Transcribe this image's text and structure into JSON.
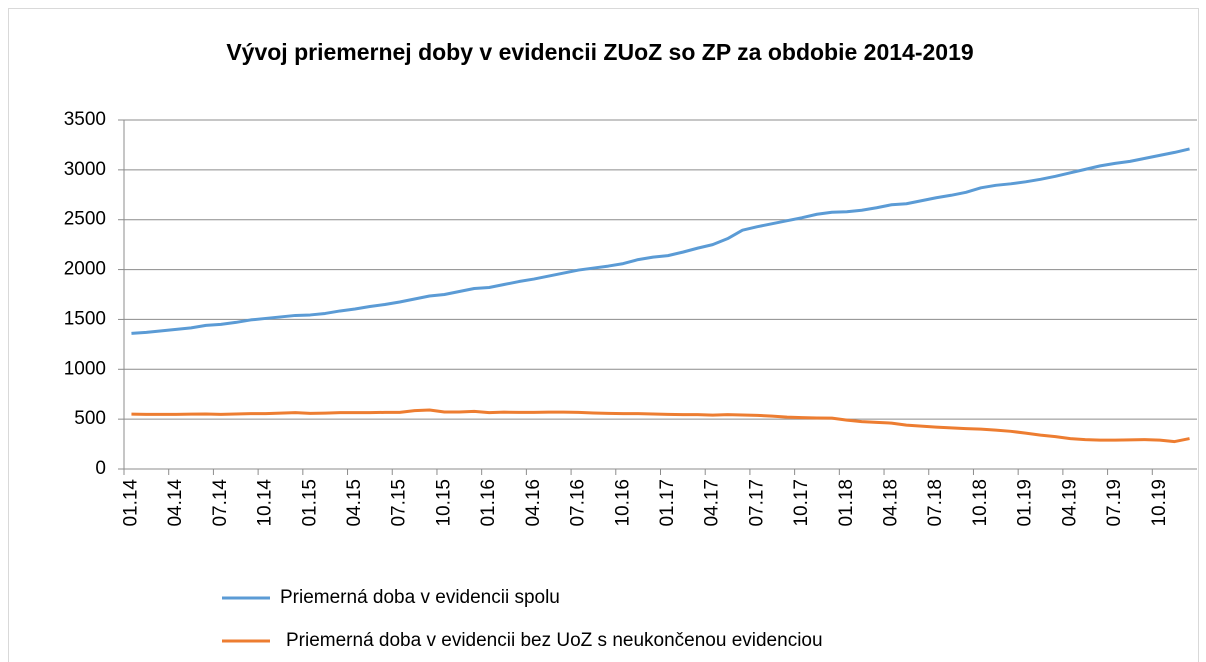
{
  "chart_data": {
    "type": "line",
    "title": "Vývoj priemernej doby v evidencii ZUoZ so ZP za obdobie 2014-2019",
    "categories": [
      "01.14",
      null,
      null,
      "04.14",
      null,
      null,
      "07.14",
      null,
      null,
      "10.14",
      null,
      null,
      "01.15",
      null,
      null,
      "04.15",
      null,
      null,
      "07.15",
      null,
      null,
      "10.15",
      null,
      null,
      "01.16",
      null,
      null,
      "04.16",
      null,
      null,
      "07.16",
      null,
      null,
      "10.16",
      null,
      null,
      "01.17",
      null,
      null,
      "04.17",
      null,
      null,
      "07.17",
      null,
      null,
      "10.17",
      null,
      null,
      "01.18",
      null,
      null,
      "04.18",
      null,
      null,
      "07.18",
      null,
      null,
      "10.18",
      null,
      null,
      "01.19",
      null,
      null,
      "04.19",
      null,
      null,
      "07.19",
      null,
      null,
      "10.19",
      null,
      null
    ],
    "series": [
      {
        "name": "Priemerná doba v evidencii spolu",
        "color": "#5b9bd5",
        "values": [
          1360,
          1370,
          1385,
          1400,
          1415,
          1440,
          1450,
          1470,
          1495,
          1510,
          1525,
          1540,
          1545,
          1560,
          1585,
          1605,
          1630,
          1650,
          1675,
          1705,
          1735,
          1750,
          1780,
          1810,
          1820,
          1850,
          1880,
          1905,
          1935,
          1965,
          1995,
          2015,
          2035,
          2060,
          2100,
          2125,
          2140,
          2175,
          2215,
          2250,
          2310,
          2395,
          2430,
          2460,
          2490,
          2520,
          2555,
          2575,
          2580,
          2595,
          2620,
          2650,
          2660,
          2690,
          2720,
          2745,
          2775,
          2820,
          2845,
          2860,
          2880,
          2905,
          2935,
          2970,
          3005,
          3040,
          3065,
          3085,
          3115,
          3145,
          3175,
          3210
        ]
      },
      {
        "name": "Priemerná doba v evidencii bez UoZ s neukončenou evidenciou",
        "color": "#ed7d31",
        "values": [
          550,
          548,
          548,
          548,
          550,
          552,
          548,
          552,
          555,
          555,
          560,
          565,
          558,
          560,
          565,
          565,
          565,
          568,
          568,
          585,
          592,
          572,
          572,
          578,
          565,
          570,
          568,
          568,
          570,
          570,
          568,
          562,
          558,
          555,
          555,
          552,
          548,
          545,
          545,
          540,
          545,
          542,
          538,
          530,
          520,
          515,
          512,
          510,
          490,
          475,
          468,
          460,
          440,
          430,
          420,
          412,
          405,
          400,
          390,
          378,
          360,
          340,
          325,
          305,
          295,
          290,
          290,
          292,
          295,
          290,
          275,
          305
        ]
      }
    ],
    "ylim": [
      0,
      3500
    ],
    "yticks": [
      0,
      500,
      1000,
      1500,
      2000,
      2500,
      3000,
      3500
    ],
    "grid": true,
    "legend": "bottom"
  }
}
